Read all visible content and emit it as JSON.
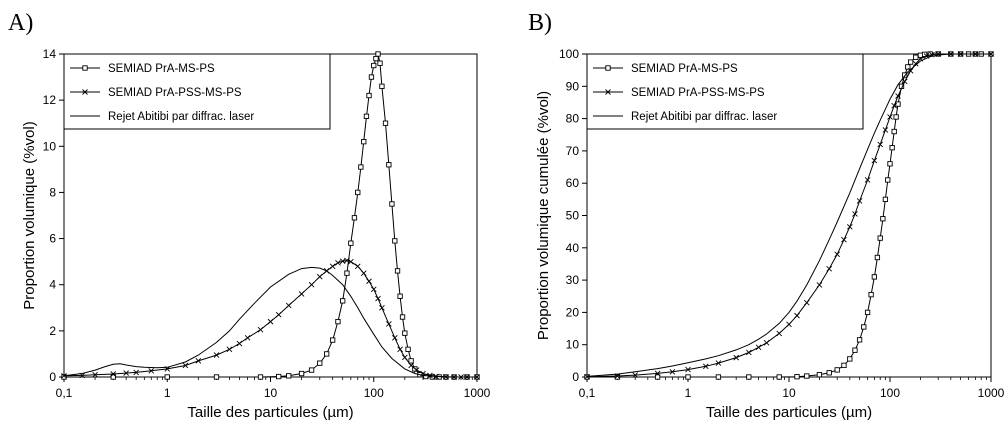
{
  "chart_data": [
    {
      "panel_label": "A)",
      "type": "line",
      "xscale": "log",
      "xlim": [
        0.1,
        1000
      ],
      "ylim": [
        0,
        14
      ],
      "xticks": [
        0.1,
        1,
        10,
        100,
        1000
      ],
      "xtick_labels": [
        "0,1",
        "1",
        "10",
        "100",
        "1000"
      ],
      "yticks": [
        0,
        2,
        4,
        6,
        8,
        10,
        12,
        14
      ],
      "ytick_labels": [
        "0",
        "2",
        "4",
        "6",
        "8",
        "10",
        "12",
        "14"
      ],
      "xlabel": "Taille des particules (µm)",
      "ylabel": "Proportion volumique (%vol)",
      "legend_position": "top-left",
      "grid": false,
      "series": [
        {
          "name": "SEMIAD PrA-MS-PS",
          "marker": "square",
          "x": [
            0.1,
            0.3,
            1,
            3,
            8,
            12,
            15,
            20,
            25,
            30,
            35,
            40,
            45,
            50,
            55,
            60,
            65,
            70,
            75,
            80,
            85,
            90,
            95,
            100,
            105,
            110,
            115,
            120,
            130,
            140,
            150,
            160,
            170,
            180,
            190,
            200,
            215,
            230,
            250,
            280,
            320,
            370,
            430,
            500,
            600,
            800,
            1000
          ],
          "y": [
            0,
            0,
            0,
            0,
            0,
            0.02,
            0.05,
            0.15,
            0.3,
            0.6,
            1.0,
            1.6,
            2.4,
            3.3,
            4.5,
            5.8,
            6.9,
            8.0,
            9.1,
            10.2,
            11.3,
            12.2,
            13.0,
            13.5,
            13.8,
            14.0,
            13.6,
            12.6,
            11.0,
            9.2,
            7.5,
            5.9,
            4.6,
            3.5,
            2.6,
            1.9,
            1.2,
            0.7,
            0.35,
            0.1,
            0.02,
            0,
            0,
            0,
            0,
            0,
            0
          ]
        },
        {
          "name": "SEMIAD PrA-PSS-MS-PS",
          "marker": "x",
          "x": [
            0.1,
            0.15,
            0.2,
            0.3,
            0.4,
            0.5,
            0.7,
            1,
            1.5,
            2,
            3,
            4,
            5,
            6,
            8,
            10,
            12,
            15,
            20,
            25,
            30,
            35,
            40,
            45,
            50,
            55,
            60,
            70,
            80,
            90,
            100,
            110,
            120,
            140,
            160,
            180,
            200,
            230,
            260,
            300,
            350,
            400,
            500,
            600,
            700,
            800,
            1000
          ],
          "y": [
            0.05,
            0.07,
            0.1,
            0.13,
            0.17,
            0.2,
            0.27,
            0.35,
            0.5,
            0.7,
            0.95,
            1.2,
            1.45,
            1.7,
            2.05,
            2.4,
            2.7,
            3.1,
            3.6,
            4.0,
            4.35,
            4.6,
            4.8,
            4.95,
            5.02,
            5.05,
            5.0,
            4.8,
            4.5,
            4.15,
            3.8,
            3.4,
            3.0,
            2.3,
            1.7,
            1.2,
            0.85,
            0.5,
            0.3,
            0.15,
            0.07,
            0.03,
            0.01,
            0,
            0,
            0,
            0
          ]
        },
        {
          "name": "Rejet Abitibi par diffrac. laser",
          "marker": "none",
          "x": [
            0.1,
            0.15,
            0.2,
            0.25,
            0.3,
            0.35,
            0.4,
            0.5,
            0.6,
            0.8,
            1,
            1.5,
            2,
            3,
            4,
            5,
            7,
            10,
            15,
            20,
            25,
            30,
            35,
            40,
            50,
            60,
            70,
            80,
            100,
            120,
            150,
            200,
            250,
            300,
            400,
            500,
            700,
            1000
          ],
          "y": [
            0.05,
            0.15,
            0.3,
            0.45,
            0.55,
            0.57,
            0.52,
            0.45,
            0.42,
            0.4,
            0.42,
            0.65,
            0.95,
            1.5,
            2.0,
            2.5,
            3.2,
            3.9,
            4.45,
            4.7,
            4.75,
            4.72,
            4.6,
            4.4,
            4.0,
            3.5,
            3.0,
            2.55,
            1.85,
            1.3,
            0.8,
            0.35,
            0.15,
            0.07,
            0.02,
            0,
            0,
            0
          ]
        }
      ]
    },
    {
      "panel_label": "B)",
      "type": "line",
      "xscale": "log",
      "xlim": [
        0.1,
        1000
      ],
      "ylim": [
        0,
        100
      ],
      "xticks": [
        0.1,
        1,
        10,
        100,
        1000
      ],
      "xtick_labels": [
        "0,1",
        "1",
        "10",
        "100",
        "1000"
      ],
      "yticks": [
        0,
        10,
        20,
        30,
        40,
        50,
        60,
        70,
        80,
        90,
        100
      ],
      "ytick_labels": [
        "0",
        "10",
        "20",
        "30",
        "40",
        "50",
        "60",
        "70",
        "80",
        "90",
        "100"
      ],
      "xlabel": "Taille des particules (µm)",
      "ylabel": "Proportion volumique cumulée  (%vol)",
      "legend_position": "top-left",
      "grid": false,
      "series": [
        {
          "name": "SEMIAD PrA-MS-PS",
          "marker": "square",
          "x": [
            0.1,
            0.2,
            0.5,
            1,
            2,
            4,
            8,
            12,
            15,
            20,
            25,
            30,
            35,
            40,
            45,
            50,
            55,
            60,
            65,
            70,
            75,
            80,
            85,
            90,
            95,
            100,
            105,
            110,
            115,
            120,
            130,
            140,
            150,
            160,
            180,
            200,
            220,
            250,
            300,
            400,
            500,
            600,
            700,
            800,
            1000
          ],
          "y": [
            0,
            0,
            0,
            0,
            0,
            0,
            0,
            0.1,
            0.3,
            0.7,
            1.3,
            2.2,
            3.6,
            5.6,
            8.3,
            11.5,
            15.5,
            20,
            25.5,
            31,
            37,
            43,
            49,
            55,
            61,
            66,
            71,
            76,
            80.5,
            84.5,
            90,
            93.5,
            96,
            97.5,
            99,
            99.6,
            99.9,
            100,
            100,
            100,
            100,
            100,
            100,
            100,
            100
          ]
        },
        {
          "name": "SEMIAD PrA-PSS-MS-PS",
          "marker": "x",
          "x": [
            0.1,
            0.2,
            0.3,
            0.5,
            0.7,
            1,
            1.5,
            2,
            3,
            4,
            5,
            6,
            8,
            10,
            12,
            15,
            20,
            25,
            30,
            35,
            40,
            45,
            50,
            60,
            70,
            80,
            90,
            100,
            110,
            120,
            140,
            160,
            180,
            200,
            230,
            260,
            300,
            400,
            500,
            700,
            1000
          ],
          "y": [
            0.1,
            0.3,
            0.6,
            1.1,
            1.6,
            2.3,
            3.3,
            4.3,
            6,
            7.6,
            9.2,
            10.6,
            13.5,
            16.3,
            19,
            23,
            28.5,
            33.5,
            38,
            42.5,
            46.5,
            50.5,
            54.5,
            61,
            67,
            72,
            76.5,
            80.5,
            84,
            87,
            91.5,
            94.8,
            97,
            98.5,
            99.4,
            99.8,
            100,
            100,
            100,
            100,
            100
          ]
        },
        {
          "name": "Rejet Abitibi par diffrac. laser",
          "marker": "none",
          "x": [
            0.1,
            0.2,
            0.3,
            0.5,
            0.7,
            1,
            1.5,
            2,
            3,
            4,
            5,
            6,
            8,
            10,
            12,
            15,
            20,
            25,
            30,
            40,
            50,
            60,
            70,
            80,
            100,
            120,
            150,
            200,
            250,
            300,
            400,
            500,
            700,
            1000
          ],
          "y": [
            0.2,
            0.9,
            1.6,
            2.6,
            3.4,
            4.4,
            5.6,
            6.6,
            8.4,
            10,
            11.7,
            13.3,
            16.6,
            20,
            23.5,
            28.5,
            36,
            42.5,
            48,
            57,
            64.5,
            70.5,
            75.5,
            79.5,
            86,
            90.5,
            94.5,
            97.8,
            99.2,
            99.7,
            100,
            100,
            100,
            100
          ]
        }
      ]
    }
  ]
}
